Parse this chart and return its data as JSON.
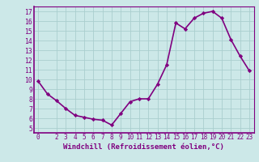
{
  "x": [
    0,
    1,
    2,
    3,
    4,
    5,
    6,
    7,
    8,
    9,
    10,
    11,
    12,
    13,
    14,
    15,
    16,
    17,
    18,
    19,
    20,
    21,
    22,
    23
  ],
  "y": [
    9.8,
    8.5,
    7.8,
    7.0,
    6.3,
    6.1,
    5.9,
    5.8,
    5.3,
    6.5,
    7.7,
    8.0,
    8.0,
    9.5,
    11.5,
    15.8,
    15.2,
    16.3,
    16.8,
    17.0,
    16.3,
    14.1,
    12.4,
    10.9
  ],
  "xlim": [
    -0.5,
    23.5
  ],
  "ylim": [
    4.5,
    17.5
  ],
  "yticks": [
    5,
    6,
    7,
    8,
    9,
    10,
    11,
    12,
    13,
    14,
    15,
    16,
    17
  ],
  "xticks": [
    0,
    2,
    3,
    4,
    5,
    6,
    7,
    8,
    9,
    10,
    11,
    12,
    13,
    14,
    15,
    16,
    17,
    18,
    19,
    20,
    21,
    22,
    23
  ],
  "xlabel": "Windchill (Refroidissement éolien,°C)",
  "line_color": "#800080",
  "marker": "D",
  "marker_size": 2.2,
  "bg_color": "#cce8e8",
  "grid_color": "#aacece",
  "line_width": 1.2,
  "tick_fontsize": 5.5,
  "xlabel_fontsize": 6.5,
  "tick_color": "#800080",
  "label_color": "#800080",
  "spine_color": "#800080"
}
